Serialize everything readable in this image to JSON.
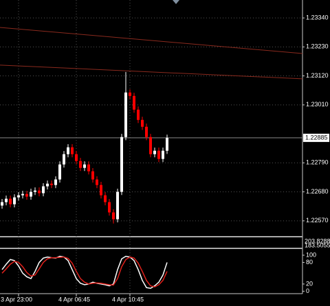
{
  "chart_data": [
    {
      "type": "candlestick",
      "categories": [
        null,
        null,
        null,
        null,
        "3 Apr 23:00",
        null,
        null,
        null,
        null,
        null,
        null,
        null,
        null,
        null,
        null,
        null,
        null,
        null,
        "4 Apr 06:45",
        null,
        null,
        null,
        null,
        null,
        null,
        null,
        null,
        null,
        null,
        null,
        null,
        "4 Apr 10:45",
        null,
        null,
        null,
        null,
        null,
        null,
        null,
        null,
        null
      ],
      "open": [
        1.22628,
        1.22641,
        1.22654,
        1.22633,
        1.22659,
        1.22667,
        1.22672,
        1.22662,
        1.2268,
        1.22685,
        1.22675,
        1.22701,
        1.22711,
        1.22706,
        1.22727,
        1.22784,
        1.22823,
        1.22849,
        1.22823,
        1.22797,
        1.22771,
        1.22784,
        1.22758,
        1.22727,
        1.22706,
        1.22667,
        1.22641,
        1.22602,
        1.22576,
        1.2268,
        1.22888,
        1.23057,
        1.23044,
        1.22992,
        1.22953,
        1.22927,
        1.22888,
        1.22823,
        1.22836,
        1.22805,
        1.22836
      ],
      "high": [
        1.22653,
        1.22666,
        1.22666,
        1.22671,
        1.22679,
        1.22684,
        1.22684,
        1.22692,
        1.22697,
        1.22697,
        1.22713,
        1.22723,
        1.22723,
        1.22739,
        1.22796,
        1.22835,
        1.22861,
        1.22861,
        1.22835,
        1.22809,
        1.22796,
        1.22796,
        1.2277,
        1.22739,
        1.22718,
        1.22679,
        1.22653,
        1.22614,
        1.22692,
        1.229,
        1.23135,
        1.23069,
        1.23056,
        1.23004,
        1.22965,
        1.22939,
        1.229,
        1.22848,
        1.22848,
        1.22848,
        1.22897
      ],
      "low": [
        1.22616,
        1.22629,
        1.22621,
        1.22621,
        1.22647,
        1.22655,
        1.2265,
        1.2265,
        1.22668,
        1.22663,
        1.22663,
        1.22689,
        1.22694,
        1.22694,
        1.22715,
        1.22772,
        1.22811,
        1.22811,
        1.22785,
        1.22759,
        1.22759,
        1.22746,
        1.22715,
        1.22694,
        1.22655,
        1.22629,
        1.2259,
        1.2256,
        1.22564,
        1.22668,
        1.22876,
        1.23032,
        1.2298,
        1.22941,
        1.22915,
        1.22876,
        1.22811,
        1.22811,
        1.22793,
        1.22793,
        1.22824
      ],
      "close": [
        1.22641,
        1.22654,
        1.22633,
        1.22659,
        1.22667,
        1.22672,
        1.22662,
        1.2268,
        1.22685,
        1.22675,
        1.22701,
        1.22711,
        1.22706,
        1.22727,
        1.22784,
        1.22823,
        1.22849,
        1.22823,
        1.22797,
        1.22771,
        1.22784,
        1.22758,
        1.22727,
        1.22706,
        1.22667,
        1.22641,
        1.22602,
        1.22576,
        1.2268,
        1.22888,
        1.23057,
        1.23044,
        1.22992,
        1.22953,
        1.22927,
        1.22888,
        1.22823,
        1.22836,
        1.22805,
        1.22836,
        1.22885
      ],
      "up_color": "#ffffff",
      "down_color": "#ff0000",
      "lines": [
        {
          "color": "#8b2a1e",
          "start": 1.23304,
          "end": 1.23205
        },
        {
          "color": "#8b2a1e",
          "start": 1.23161,
          "end": 1.23109
        }
      ],
      "ylim": [
        1.22515,
        1.23408
      ],
      "yticks": [
        {
          "value": 1.2334,
          "label": "1.23340"
        },
        {
          "value": 1.2323,
          "label": "1.23230"
        },
        {
          "value": 1.2312,
          "label": "1.23120"
        },
        {
          "value": 1.2301,
          "label": "1.23010"
        },
        {
          "value": 1.2279,
          "label": "1.22790"
        },
        {
          "value": 1.2268,
          "label": "1.22680"
        },
        {
          "value": 1.2257,
          "label": "1.22570"
        }
      ],
      "last_price": {
        "value": 1.22885,
        "label": "1.22885"
      },
      "grid": true
    },
    {
      "type": "indicator",
      "labels": [
        "203.8288",
        "183.5055"
      ]
    },
    {
      "type": "line",
      "series": [
        {
          "color": "#ffffff",
          "values": [
            60,
            75,
            88,
            85,
            70,
            50,
            40,
            35,
            55,
            80,
            92,
            95,
            93,
            92,
            97,
            95,
            85,
            60,
            35,
            22,
            18,
            20,
            25,
            22,
            20,
            18,
            15,
            20,
            60,
            90,
            97,
            95,
            85,
            60,
            30,
            10,
            8,
            15,
            25,
            45,
            80
          ]
        },
        {
          "color": "#e0201b",
          "values": [
            50,
            62,
            75,
            83,
            80,
            68,
            52,
            42,
            45,
            62,
            80,
            90,
            93,
            93,
            94,
            95,
            91,
            78,
            55,
            35,
            25,
            20,
            22,
            23,
            22,
            20,
            18,
            17,
            35,
            68,
            88,
            95,
            92,
            78,
            55,
            30,
            15,
            12,
            18,
            30,
            55
          ]
        }
      ],
      "ylim": [
        -3,
        119
      ],
      "yticks": [
        100,
        80,
        20,
        0
      ]
    }
  ]
}
